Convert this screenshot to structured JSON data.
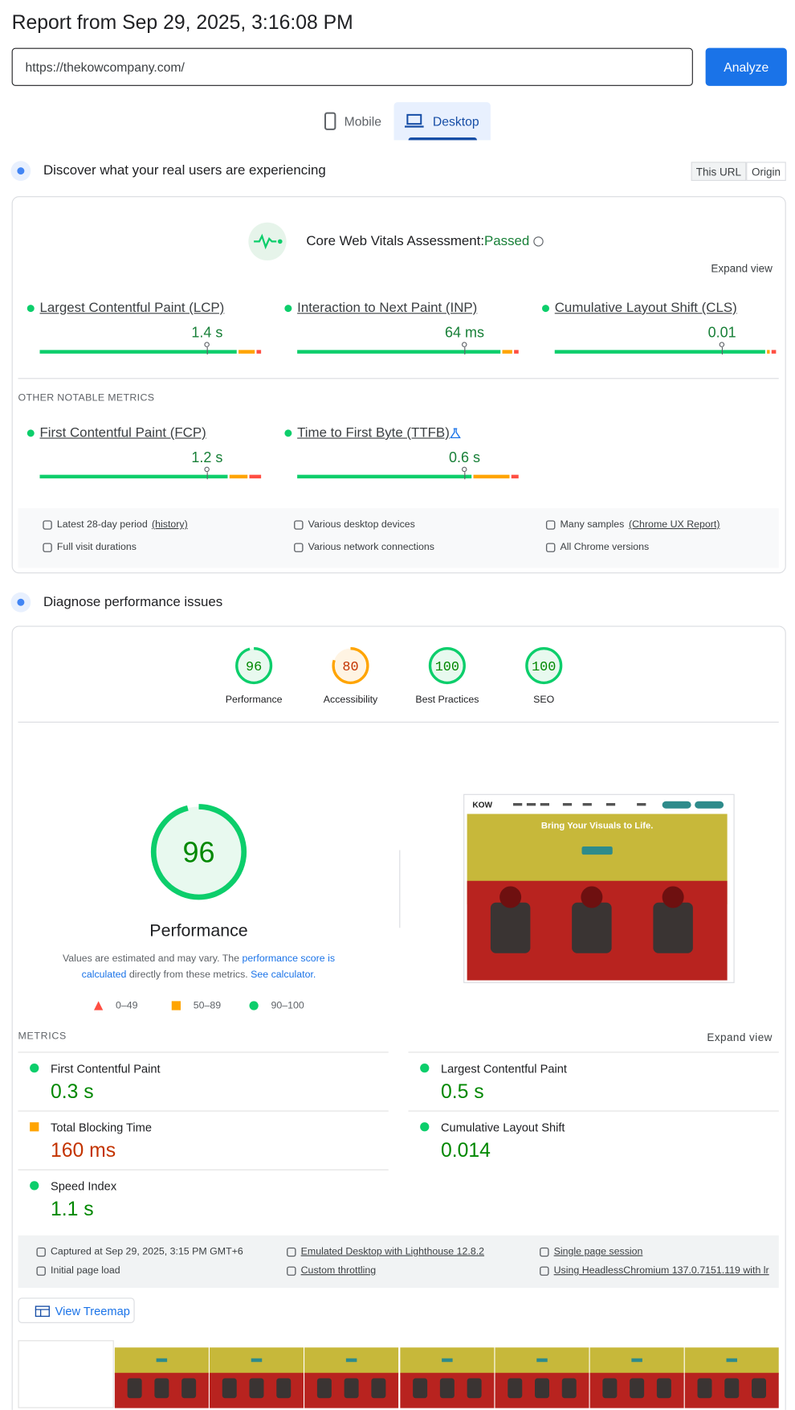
{
  "header": {
    "title": "Report from Sep 29, 2025, 3:16:08 PM",
    "url": "https://thekowcompany.com/",
    "button": "Analyze"
  },
  "tabs": [
    {
      "label": "Mobile",
      "selected": false
    },
    {
      "label": "Desktop",
      "selected": true
    }
  ],
  "field": {
    "heading": "Discover what your real users are experiencing",
    "scope": [
      {
        "label": "This URL",
        "selected": true
      },
      {
        "label": "Origin",
        "selected": false
      }
    ],
    "assessment": {
      "label": "Core Web Vitals Assessment:",
      "status": "Passed"
    },
    "expand": "Expand view",
    "metrics": [
      {
        "name": "Largest Contentful Paint (LCP)",
        "value": "1.4 s",
        "distribution": [
          89,
          8,
          3
        ]
      },
      {
        "name": "Interaction to Next Paint (INP)",
        "value": "64 ms",
        "distribution": [
          92,
          5,
          3
        ]
      },
      {
        "name": "Cumulative Layout Shift (CLS)",
        "value": "0.01",
        "distribution": [
          95,
          2,
          3
        ]
      }
    ],
    "other_heading": "OTHER NOTABLE METRICS",
    "other_metrics": [
      {
        "name": "First Contentful Paint (FCP)",
        "value": "1.2 s",
        "distribution": [
          85,
          9,
          6
        ]
      },
      {
        "name": "Time to First Byte (TTFB)",
        "value": "0.6 s",
        "distribution": [
          79,
          17,
          4
        ]
      }
    ],
    "details": [
      {
        "text": "Latest 28-day period",
        "link": "(history)"
      },
      {
        "text": "Various desktop devices"
      },
      {
        "text": "Many samples",
        "link": "(Chrome UX Report)"
      },
      {
        "text": "Full visit durations"
      },
      {
        "text": "Various network connections"
      },
      {
        "text": "All Chrome versions"
      }
    ]
  },
  "lab": {
    "heading": "Diagnose performance issues",
    "categories": [
      {
        "name": "Performance",
        "score": 96,
        "rating": "pass"
      },
      {
        "name": "Accessibility",
        "score": 80,
        "rating": "average"
      },
      {
        "name": "Best Practices",
        "score": 100,
        "rating": "pass"
      },
      {
        "name": "SEO",
        "score": 100,
        "rating": "pass"
      }
    ],
    "main": {
      "score": 96,
      "rating": "pass",
      "name": "Performance",
      "note": [
        "Values are estimated and may vary. The",
        "performance score is calculated",
        "directly from these metrics.",
        "See calculator."
      ],
      "legend": [
        "0–49",
        "50–89",
        "90–100"
      ]
    },
    "screenshot": {
      "logo": "KOW",
      "headline": "Bring Your Visuals to Life."
    },
    "metrics_heading": "METRICS",
    "expand": "Expand view",
    "metrics": [
      {
        "name": "First Contentful Paint",
        "value": "0.3 s",
        "rating": "pass"
      },
      {
        "name": "Largest Contentful Paint",
        "value": "0.5 s",
        "rating": "pass"
      },
      {
        "name": "Total Blocking Time",
        "value": "160 ms",
        "rating": "average"
      },
      {
        "name": "Cumulative Layout Shift",
        "value": "0.014",
        "rating": "pass"
      },
      {
        "name": "Speed Index",
        "value": "1.1 s",
        "rating": "pass"
      }
    ],
    "details": [
      {
        "text": "Captured at Sep 29, 2025, 3:15 PM GMT+6",
        "underline": false
      },
      {
        "text": "Emulated Desktop with Lighthouse 12.8.2",
        "underline": true
      },
      {
        "text": "Single page session",
        "underline": true
      },
      {
        "text": "Initial page load",
        "underline": false
      },
      {
        "text": "Custom throttling",
        "underline": true
      },
      {
        "text": "Using HeadlessChromium 137.0.7151.119 with lr",
        "underline": true
      }
    ],
    "treemap": "View Treemap"
  }
}
